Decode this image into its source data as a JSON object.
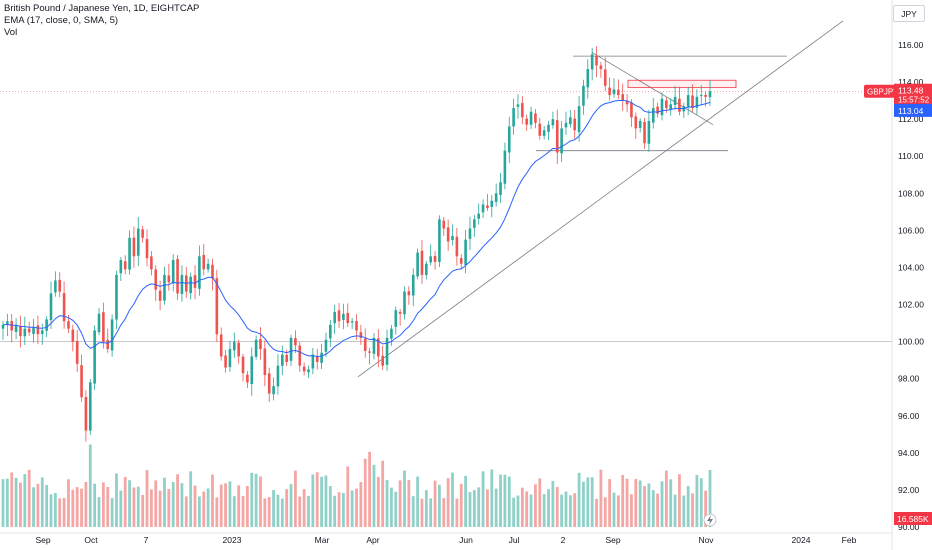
{
  "legend": {
    "title": "British Pound / Japanese Yen, 1D, EIGHTCAP",
    "indicator": "EMA (17, close, 0, SMA, 5)",
    "volume": "Vol"
  },
  "currency": "JPY",
  "colors": {
    "up": "#26a69a",
    "down": "#ef5350",
    "ema": "#2962ff",
    "price_badge": "#f23645",
    "ema_badge": "#2962ff",
    "vol_up": "#8fd1c9",
    "vol_down": "#f4a6a4"
  },
  "price_badge": {
    "symbol": "GBPJPY",
    "price": "113.48",
    "countdown": "15:57:52"
  },
  "ema_badge": "113.04",
  "volume_badge": "16.585K",
  "chart_data": {
    "type": "candlestick",
    "title": "British Pound / Japanese Yen, 1D, EIGHTCAP",
    "y_ticks": [
      "116.00",
      "114.00",
      "112.00",
      "110.00",
      "108.00",
      "106.00",
      "104.00",
      "102.00",
      "100.00",
      "98.00",
      "96.00",
      "94.00",
      "92.00",
      "90.00"
    ],
    "x_ticks": [
      "Sep",
      "Oct",
      "7",
      "2023",
      "Mar",
      "Apr",
      "Jun",
      "Jul",
      "2",
      "Sep",
      "Nov",
      "2024",
      "Feb"
    ],
    "ylim": [
      90,
      117.5
    ],
    "grid": false,
    "key_levels": [
      100.0,
      110.3,
      115.4
    ],
    "resistance_zone": [
      113.7,
      114.1
    ],
    "close_series": [
      100.9,
      101.1,
      100.6,
      100.9,
      100.3,
      100.7,
      100.5,
      100.8,
      100.4,
      100.6,
      101.2,
      102.6,
      103.3,
      102.7,
      101.1,
      100.7,
      100.0,
      98.8,
      97.0,
      95.2,
      97.8,
      100.6,
      101.5,
      100.0,
      99.6,
      101.2,
      103.6,
      104.4,
      103.9,
      105.6,
      104.6,
      106.1,
      105.6,
      104.5,
      103.9,
      102.8,
      102.2,
      103.6,
      103.2,
      104.4,
      102.6,
      103.6,
      102.7,
      103.5,
      102.9,
      104.6,
      103.9,
      104.2,
      103.4,
      100.4,
      99.2,
      98.6,
      99.6,
      100.0,
      99.2,
      98.3,
      97.8,
      99.2,
      100.1,
      99.6,
      98.2,
      97.2,
      97.6,
      98.7,
      99.3,
      98.9,
      100.2,
      99.8,
      98.7,
      98.4,
      98.5,
      99.3,
      98.9,
      99.4,
      100.1,
      100.9,
      101.6,
      101.1,
      101.5,
      101.0,
      101.1,
      100.6,
      100.2,
      99.5,
      99.4,
      100.2,
      99.2,
      98.7,
      100.2,
      100.7,
      101.7,
      101.5,
      102.7,
      102.5,
      103.6,
      104.8,
      103.6,
      104.2,
      104.6,
      104.3,
      106.6,
      106.1,
      105.4,
      105.7,
      104.6,
      104.2,
      105.5,
      106.1,
      106.6,
      106.9,
      107.4,
      107.2,
      107.6,
      108.0,
      108.6,
      110.3,
      111.6,
      112.6,
      112.8,
      112.1,
      111.7,
      112.4,
      111.8,
      111.1,
      111.4,
      111.7,
      112.0,
      110.2,
      111.5,
      111.8,
      112.1,
      111.4,
      112.7,
      113.8,
      114.7,
      115.5,
      114.9,
      114.7,
      113.8,
      113.3,
      113.6,
      113.3,
      113.0,
      112.8,
      112.1,
      111.5,
      111.9,
      110.7,
      111.9,
      112.6,
      112.3,
      113.1,
      112.6,
      112.8,
      113.2,
      112.4,
      112.7,
      113.3,
      112.6,
      113.2,
      113.3,
      113.2,
      113.5
    ],
    "ema_period": 17
  }
}
